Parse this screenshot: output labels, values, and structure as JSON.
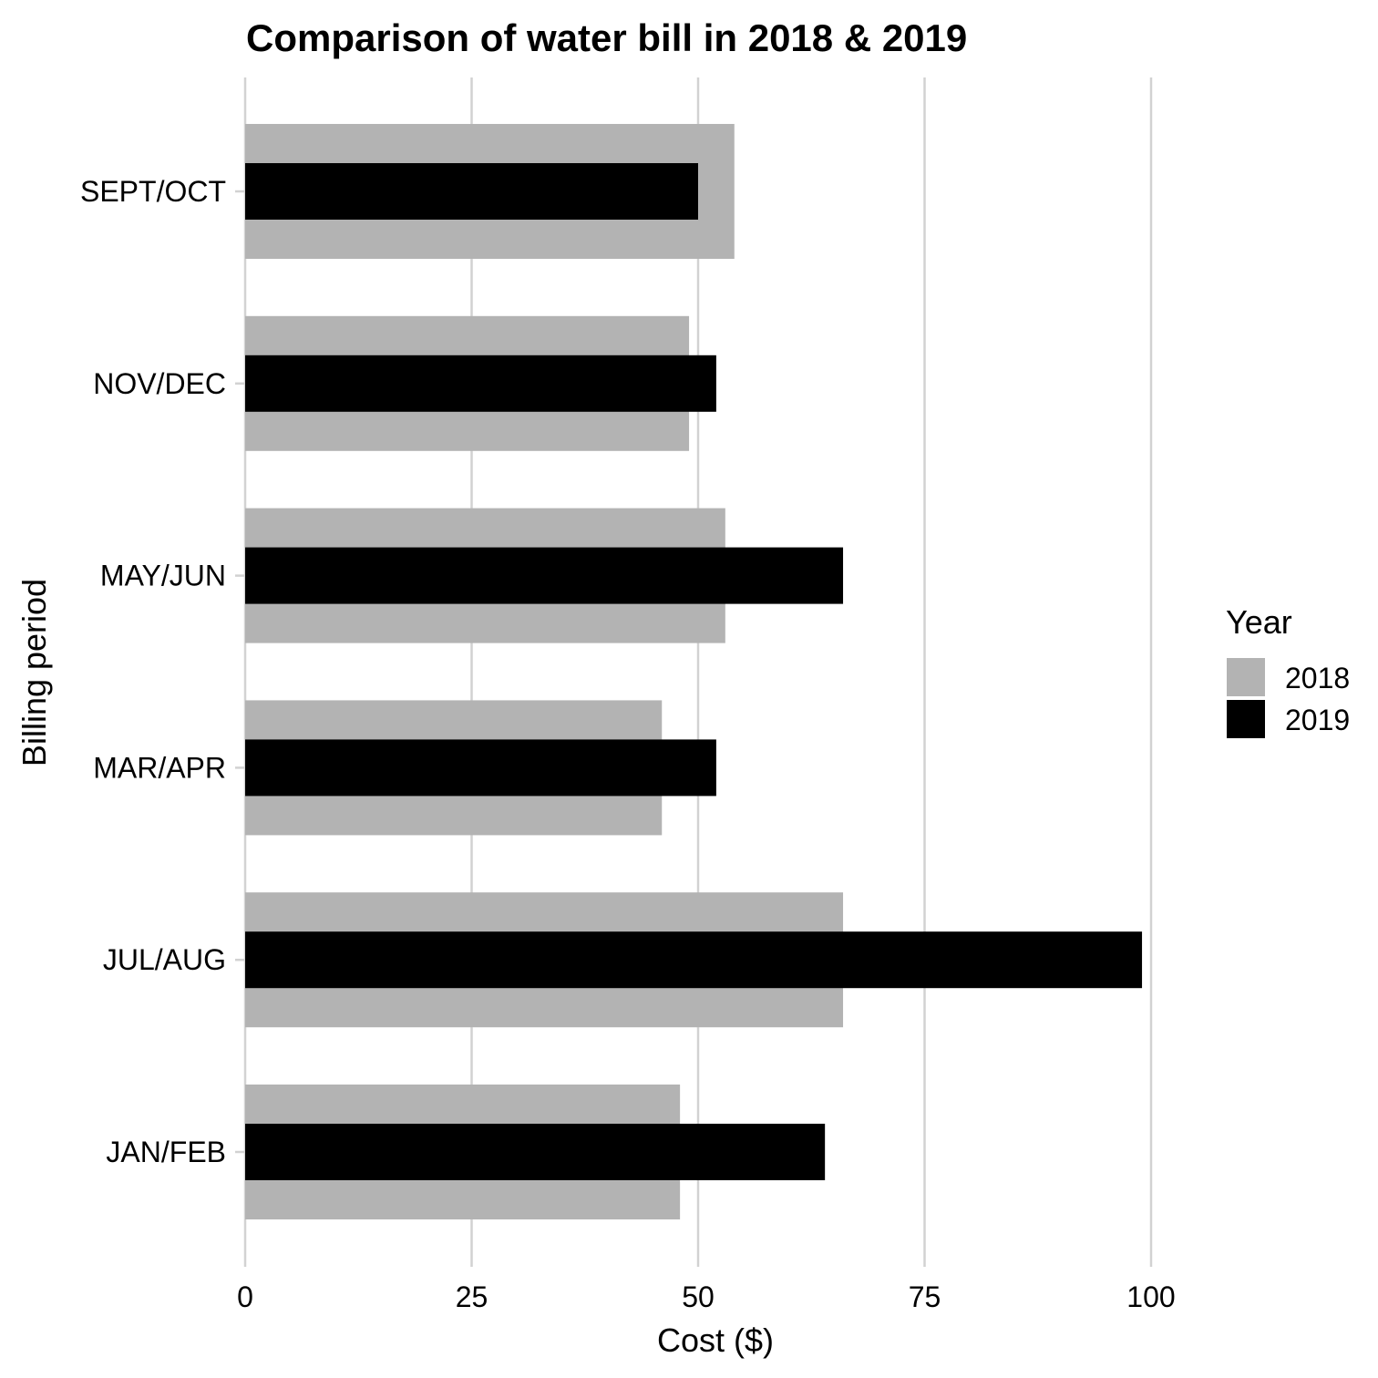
{
  "chart_data": {
    "type": "bar",
    "orientation": "horizontal",
    "title": "Comparison of water bill in 2018 & 2019",
    "xlabel": "Cost ($)",
    "ylabel": "Billing period",
    "xlim": [
      0,
      100
    ],
    "xticks": [
      "0",
      "25",
      "50",
      "75",
      "100"
    ],
    "grid": "vertical major",
    "categories": [
      "SEPT/OCT",
      "NOV/DEC",
      "MAY/JUN",
      "MAR/APR",
      "JUL/AUG",
      "JAN/FEB"
    ],
    "series": [
      {
        "name": "2018",
        "color": "#b3b3b3",
        "values": [
          54,
          49,
          53,
          46,
          66,
          48
        ]
      },
      {
        "name": "2019",
        "color": "#000000",
        "values": [
          50,
          52,
          66,
          52,
          99,
          64
        ]
      }
    ],
    "legend": {
      "title": "Year",
      "position": "right"
    }
  }
}
